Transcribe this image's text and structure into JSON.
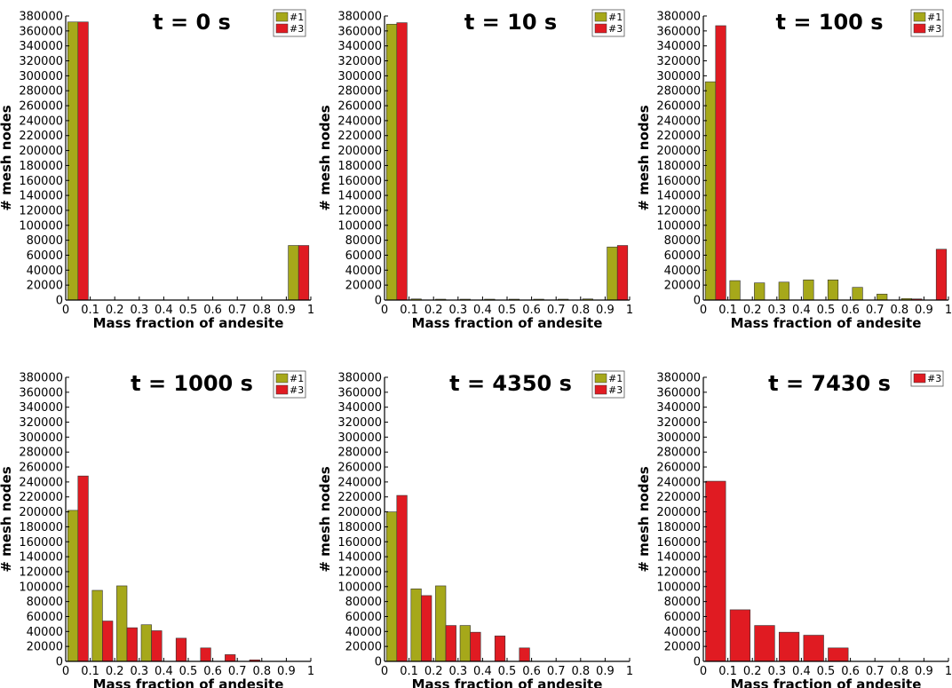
{
  "colors": {
    "series_1": "#a6a81a",
    "series_3": "#e01b22",
    "bar_edge": "#333333",
    "axis": "#000000"
  },
  "chart_data": [
    {
      "type": "bar",
      "title": "t = 0 s",
      "xlabel": "Mass fraction of andesite",
      "ylabel": "# mesh nodes",
      "xlim": [
        0,
        1
      ],
      "ylim": [
        0,
        380000
      ],
      "x_ticks": [
        "0",
        "0.1",
        "0.2",
        "0.3",
        "0.4",
        "0.5",
        "0.6",
        "0.7",
        "0.8",
        "0.9",
        "1"
      ],
      "y_ticks": [
        "0",
        "20000",
        "40000",
        "60000",
        "80000",
        "100000",
        "120000",
        "140000",
        "160000",
        "180000",
        "200000",
        "220000",
        "240000",
        "260000",
        "280000",
        "300000",
        "320000",
        "340000",
        "360000",
        "380000"
      ],
      "legend": [
        "#1",
        "#3"
      ],
      "bins": [
        0,
        0.1,
        0.2,
        0.3,
        0.4,
        0.5,
        0.6,
        0.7,
        0.8,
        0.9
      ],
      "series": [
        {
          "name": "#1",
          "values": [
            372000,
            0,
            0,
            0,
            0,
            0,
            0,
            0,
            0,
            73000
          ]
        },
        {
          "name": "#3",
          "values": [
            372000,
            0,
            0,
            0,
            0,
            0,
            0,
            0,
            0,
            73000
          ]
        }
      ]
    },
    {
      "type": "bar",
      "title": "t = 10 s",
      "xlabel": "Mass fraction of andesite",
      "ylabel": "# mesh nodes",
      "xlim": [
        0,
        1
      ],
      "ylim": [
        0,
        380000
      ],
      "x_ticks": [
        "0",
        "0.1",
        "0.2",
        "0.3",
        "0.4",
        "0.5",
        "0.6",
        "0.7",
        "0.8",
        "0.9",
        "1"
      ],
      "y_ticks": [
        "0",
        "20000",
        "40000",
        "60000",
        "80000",
        "100000",
        "120000",
        "140000",
        "160000",
        "180000",
        "200000",
        "220000",
        "240000",
        "260000",
        "280000",
        "300000",
        "320000",
        "340000",
        "360000",
        "380000"
      ],
      "legend": [
        "#1",
        "#3"
      ],
      "bins": [
        0,
        0.1,
        0.2,
        0.3,
        0.4,
        0.5,
        0.6,
        0.7,
        0.8,
        0.9
      ],
      "series": [
        {
          "name": "#1",
          "values": [
            369000,
            1500,
            800,
            500,
            400,
            400,
            500,
            800,
            1500,
            71000
          ]
        },
        {
          "name": "#3",
          "values": [
            371000,
            0,
            0,
            0,
            0,
            0,
            0,
            0,
            0,
            73000
          ]
        }
      ]
    },
    {
      "type": "bar",
      "title": "t = 100 s",
      "xlabel": "Mass fraction of andesite",
      "ylabel": "# mesh nodes",
      "xlim": [
        0,
        1
      ],
      "ylim": [
        0,
        380000
      ],
      "x_ticks": [
        "0",
        "0.1",
        "0.2",
        "0.3",
        "0.4",
        "0.5",
        "0.6",
        "0.7",
        "0.8",
        "0.9",
        "1"
      ],
      "y_ticks": [
        "0",
        "20000",
        "40000",
        "60000",
        "80000",
        "100000",
        "120000",
        "140000",
        "160000",
        "180000",
        "200000",
        "220000",
        "240000",
        "260000",
        "280000",
        "300000",
        "320000",
        "340000",
        "360000",
        "380000"
      ],
      "legend": [
        "#1",
        "#3"
      ],
      "bins": [
        0,
        0.1,
        0.2,
        0.3,
        0.4,
        0.5,
        0.6,
        0.7,
        0.8,
        0.9
      ],
      "series": [
        {
          "name": "#1",
          "values": [
            292000,
            26000,
            23000,
            24000,
            27000,
            27000,
            17000,
            8000,
            2000,
            0
          ]
        },
        {
          "name": "#3",
          "values": [
            367000,
            0,
            0,
            0,
            0,
            0,
            0,
            0,
            1500,
            68000
          ]
        }
      ]
    },
    {
      "type": "bar",
      "title": "t = 1000 s",
      "xlabel": "Mass fraction of andesite",
      "ylabel": "# mesh nodes",
      "xlim": [
        0,
        1
      ],
      "ylim": [
        0,
        380000
      ],
      "x_ticks": [
        "0",
        "0.1",
        "0.2",
        "0.3",
        "0.4",
        "0.5",
        "0.6",
        "0.7",
        "0.8",
        "0.9",
        "1"
      ],
      "y_ticks": [
        "0",
        "20000",
        "40000",
        "60000",
        "80000",
        "100000",
        "120000",
        "140000",
        "160000",
        "180000",
        "200000",
        "220000",
        "240000",
        "260000",
        "280000",
        "300000",
        "320000",
        "340000",
        "360000",
        "380000"
      ],
      "legend": [
        "#1",
        "#3"
      ],
      "bins": [
        0,
        0.1,
        0.2,
        0.3,
        0.4,
        0.5,
        0.6,
        0.7,
        0.8,
        0.9
      ],
      "series": [
        {
          "name": "#1",
          "values": [
            202000,
            95000,
            101000,
            49000,
            0,
            0,
            0,
            0,
            0,
            0
          ]
        },
        {
          "name": "#3",
          "values": [
            248000,
            54000,
            45000,
            41000,
            31000,
            18000,
            9000,
            2000,
            0,
            0
          ]
        }
      ]
    },
    {
      "type": "bar",
      "title": "t = 4350 s",
      "xlabel": "Mass fraction of andesite",
      "ylabel": "# mesh nodes",
      "xlim": [
        0,
        1
      ],
      "ylim": [
        0,
        380000
      ],
      "x_ticks": [
        "0",
        "0.1",
        "0.2",
        "0.3",
        "0.4",
        "0.5",
        "0.6",
        "0.7",
        "0.8",
        "0.9",
        "1"
      ],
      "y_ticks": [
        "0",
        "20000",
        "40000",
        "60000",
        "80000",
        "100000",
        "120000",
        "140000",
        "160000",
        "180000",
        "200000",
        "220000",
        "240000",
        "260000",
        "280000",
        "300000",
        "320000",
        "340000",
        "360000",
        "380000"
      ],
      "legend": [
        "#1",
        "#3"
      ],
      "bins": [
        0,
        0.1,
        0.2,
        0.3,
        0.4,
        0.5,
        0.6,
        0.7,
        0.8,
        0.9
      ],
      "series": [
        {
          "name": "#1",
          "values": [
            200000,
            97000,
            101000,
            48000,
            0,
            0,
            0,
            0,
            0,
            0
          ]
        },
        {
          "name": "#3",
          "values": [
            222000,
            88000,
            48000,
            39000,
            34000,
            18000,
            0,
            0,
            0,
            0
          ]
        }
      ]
    },
    {
      "type": "bar",
      "title": "t = 7430 s",
      "xlabel": "Mass fraction of andesite",
      "ylabel": "# mesh nodes",
      "xlim": [
        0,
        1
      ],
      "ylim": [
        0,
        380000
      ],
      "x_ticks": [
        "0",
        "0.1",
        "0.2",
        "0.3",
        "0.4",
        "0.5",
        "0.6",
        "0.7",
        "0.8",
        "0.9",
        "1"
      ],
      "y_ticks": [
        "0",
        "20000",
        "40000",
        "60000",
        "80000",
        "100000",
        "120000",
        "140000",
        "160000",
        "180000",
        "200000",
        "220000",
        "240000",
        "260000",
        "280000",
        "300000",
        "320000",
        "340000",
        "360000",
        "380000"
      ],
      "legend": [
        "#3"
      ],
      "bins": [
        0,
        0.1,
        0.2,
        0.3,
        0.4,
        0.5,
        0.6,
        0.7,
        0.8,
        0.9
      ],
      "series": [
        {
          "name": "#3",
          "values": [
            241000,
            69000,
            48000,
            39000,
            35000,
            18000,
            0,
            0,
            0,
            0
          ]
        }
      ]
    }
  ]
}
